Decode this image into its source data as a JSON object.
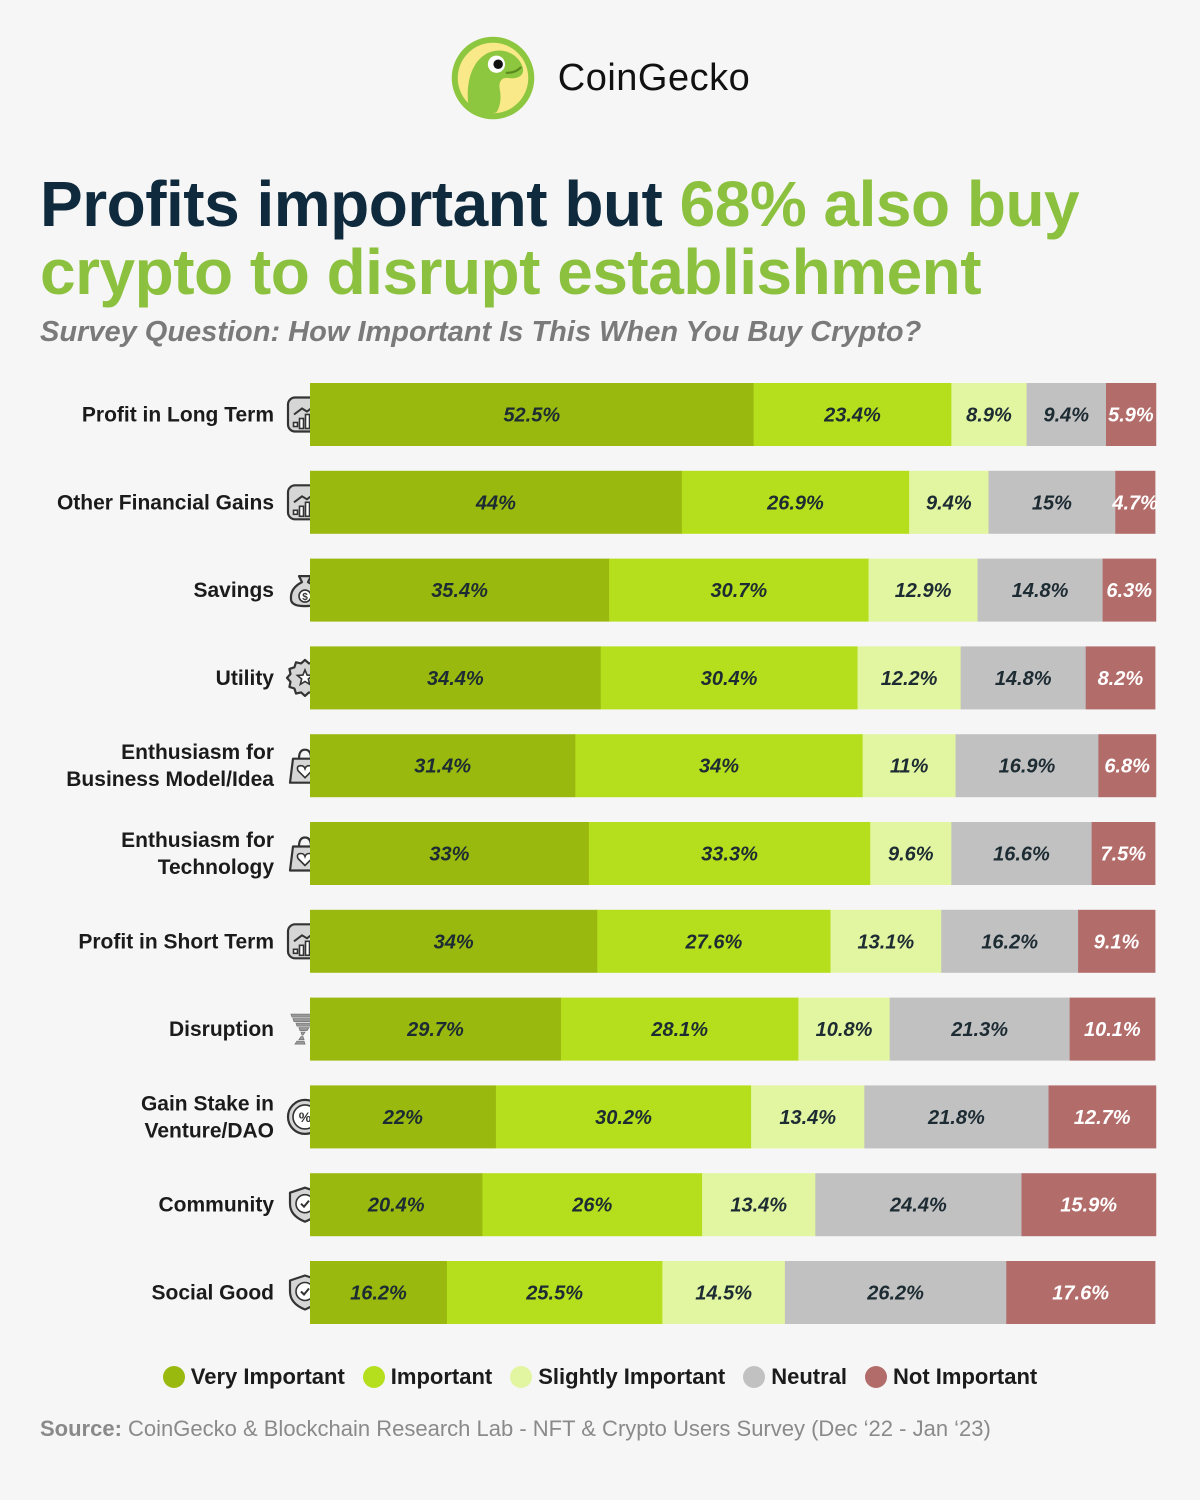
{
  "brand": {
    "name": "CoinGecko",
    "logo_icon": "gecko-logo-icon"
  },
  "headline": {
    "part1": "Profits important but ",
    "part2": "68% also buy crypto to disrupt establishment"
  },
  "subtitle": "Survey Question: How Important Is This When You Buy Crypto?",
  "source": {
    "label": "Source:",
    "text": " CoinGecko & Blockchain Research Lab - NFT & Crypto Users Survey (Dec ‘22 - Jan ‘23)"
  },
  "colors": {
    "very_important": "#99b90f",
    "important": "#b5df1c",
    "slightly_important": "#e2f5a0",
    "neutral": "#c1c1c1",
    "not_important": "#b26c6a",
    "headline_dark": "#0f2a3d",
    "headline_green": "#8cc13f"
  },
  "chart_data": {
    "type": "bar",
    "orientation": "horizontal",
    "stacked": true,
    "value_suffix": "%",
    "categories": [
      "Profit in Long Term",
      "Other Financial Gains",
      "Savings",
      "Utility",
      "Enthusiasm for Business Model/Idea",
      "Enthusiasm for Technology",
      "Profit in Short Term",
      "Disruption",
      "Gain Stake in Venture/DAO",
      "Community",
      "Social Good"
    ],
    "category_lines": [
      [
        "Profit in Long Term"
      ],
      [
        "Other Financial Gains"
      ],
      [
        "Savings"
      ],
      [
        "Utility"
      ],
      [
        "Enthusiasm for",
        "Business Model/Idea"
      ],
      [
        "Enthusiasm for",
        "Technology"
      ],
      [
        "Profit in Short Term"
      ],
      [
        "Disruption"
      ],
      [
        "Gain Stake in",
        "Venture/DAO"
      ],
      [
        "Community"
      ],
      [
        "Social Good"
      ]
    ],
    "category_icons": [
      "growth-chart-icon",
      "growth-chart-icon",
      "money-bag-icon",
      "star-badge-icon",
      "heart-bag-icon",
      "heart-bag-icon",
      "growth-chart-icon",
      "tornado-icon",
      "percent-coin-icon",
      "shield-check-icon",
      "shield-check-icon"
    ],
    "series": [
      {
        "name": "Very Important",
        "color": "#99b90f",
        "values": [
          52.5,
          44,
          35.4,
          34.4,
          31.4,
          33,
          34,
          29.7,
          22,
          20.4,
          16.2
        ]
      },
      {
        "name": "Important",
        "color": "#b5df1c",
        "values": [
          23.4,
          26.9,
          30.7,
          30.4,
          34,
          33.3,
          27.6,
          28.1,
          30.2,
          26,
          25.5
        ]
      },
      {
        "name": "Slightly Important",
        "color": "#e2f5a0",
        "values": [
          8.9,
          9.4,
          12.9,
          12.2,
          11,
          9.6,
          13.1,
          10.8,
          13.4,
          13.4,
          14.5
        ]
      },
      {
        "name": "Neutral",
        "color": "#c1c1c1",
        "values": [
          9.4,
          15,
          14.8,
          14.8,
          16.9,
          16.6,
          16.2,
          21.3,
          21.8,
          24.4,
          26.2
        ]
      },
      {
        "name": "Not Important",
        "color": "#b26c6a",
        "values": [
          5.9,
          4.7,
          6.3,
          8.2,
          6.8,
          7.5,
          9.1,
          10.1,
          12.7,
          15.9,
          17.6
        ]
      }
    ],
    "xlim": [
      0,
      100
    ],
    "legend_position": "bottom",
    "grid": false
  }
}
